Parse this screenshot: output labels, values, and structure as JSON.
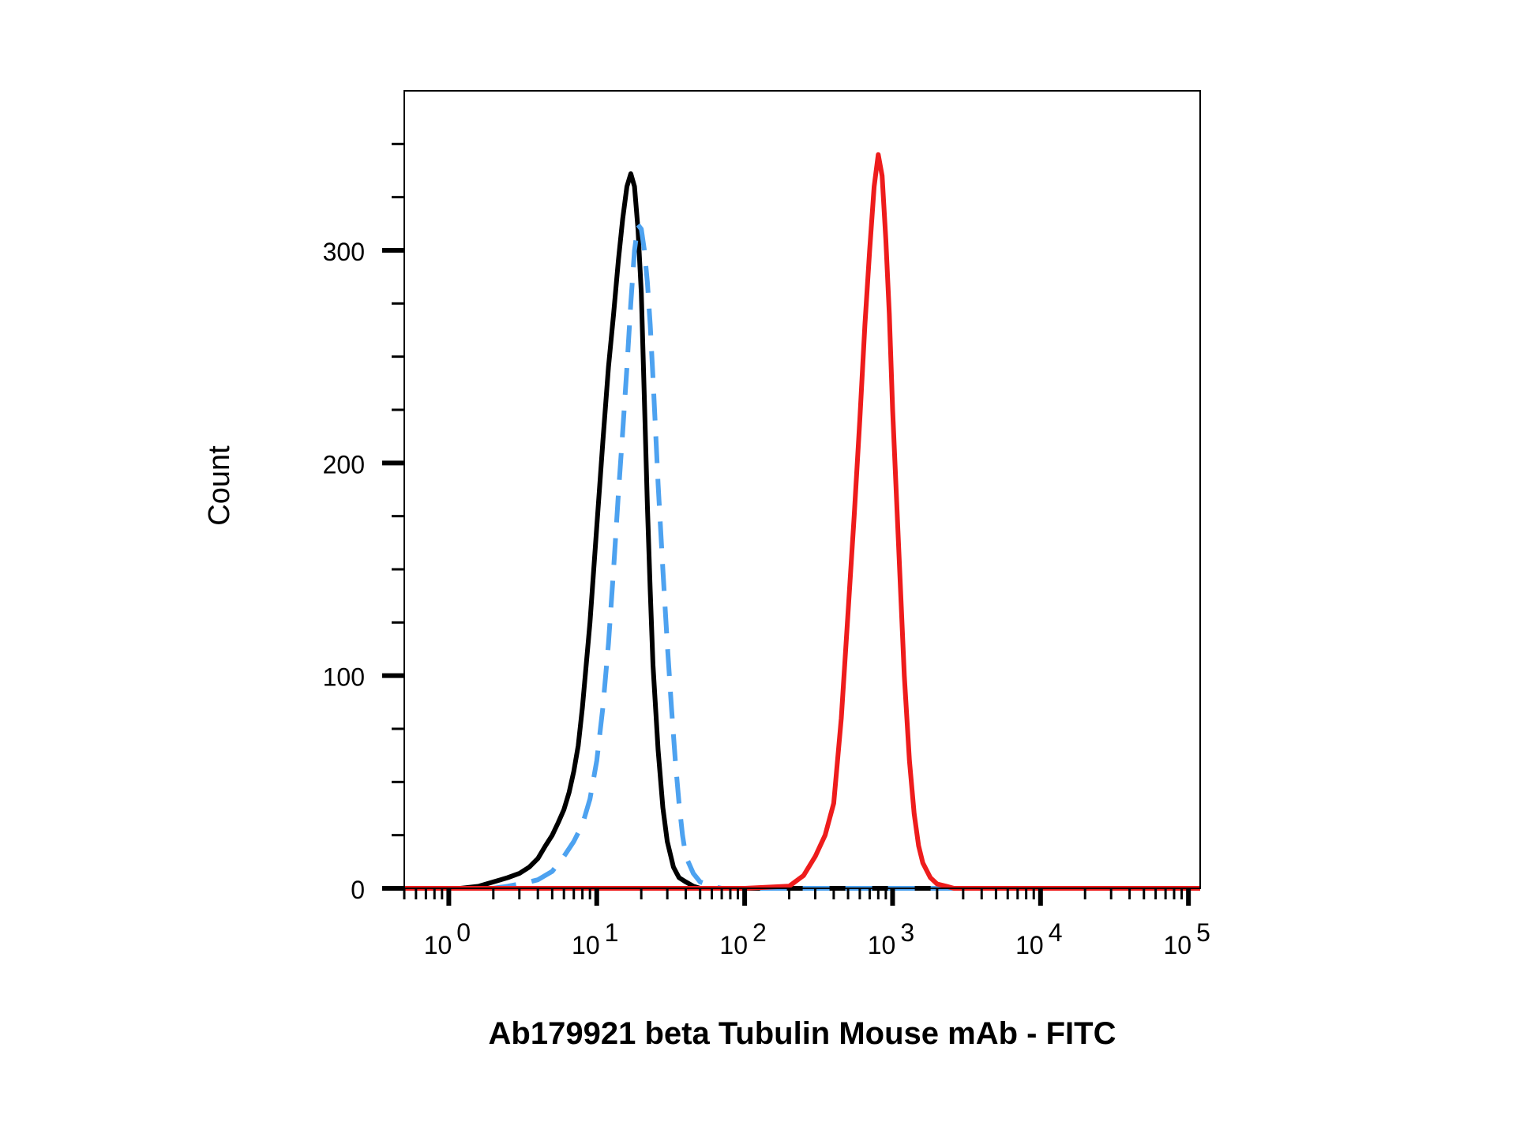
{
  "chart_data": {
    "type": "line",
    "title": "",
    "xlabel": "Ab179921 beta Tubulin Mouse mAb - FITC",
    "ylabel": "Count",
    "x_scale": "log10",
    "xlim": [
      0.5,
      120000
    ],
    "ylim": [
      0,
      375
    ],
    "grid": false,
    "legend": "none",
    "x_ticks": [
      {
        "base": "10",
        "exp": "0",
        "value": 1
      },
      {
        "base": "10",
        "exp": "1",
        "value": 10
      },
      {
        "base": "10",
        "exp": "2",
        "value": 100
      },
      {
        "base": "10",
        "exp": "3",
        "value": 1000
      },
      {
        "base": "10",
        "exp": "4",
        "value": 10000
      },
      {
        "base": "10",
        "exp": "5",
        "value": 100000
      }
    ],
    "y_ticks": [
      "0",
      "100",
      "200",
      "300"
    ],
    "y_tick_values": [
      0,
      100,
      200,
      300
    ],
    "series": [
      {
        "color": "#000000",
        "style": "solid",
        "x": [
          0.5,
          1.2,
          1.6,
          2.0,
          2.5,
          3.0,
          3.5,
          4.0,
          4.5,
          5.0,
          5.5,
          6.0,
          6.5,
          7.0,
          7.5,
          8.0,
          9.0,
          10.0,
          11.0,
          12.0,
          13.0,
          14.0,
          15.0,
          16.0,
          17.0,
          18.0,
          19.0,
          20.0,
          21.0,
          22.0,
          23.0,
          24.0,
          26.0,
          28.0,
          30.0,
          33.0,
          36.0,
          40.0,
          45.0,
          50.0,
          55.0,
          60.0,
          70.0,
          80.0,
          120000
        ],
        "y": [
          0,
          0,
          1,
          3,
          5,
          7,
          10,
          14,
          20,
          25,
          31,
          37,
          45,
          55,
          67,
          85,
          125,
          170,
          210,
          245,
          270,
          295,
          315,
          330,
          336,
          330,
          310,
          280,
          230,
          180,
          140,
          105,
          65,
          38,
          22,
          10,
          5,
          3,
          1,
          0,
          0,
          0,
          0,
          0,
          0
        ]
      },
      {
        "color": "#4DA2F0",
        "style": "dashed",
        "x": [
          0.5,
          2.0,
          2.5,
          3.0,
          3.5,
          4.0,
          5.0,
          6.0,
          7.0,
          8.0,
          9.0,
          10.0,
          11.0,
          12.0,
          13.0,
          14.0,
          15.0,
          16.0,
          17.0,
          18.0,
          19.0,
          20.0,
          21.0,
          22.0,
          23.0,
          24.0,
          25.0,
          26.0,
          28.0,
          30.0,
          32.0,
          34.0,
          36.0,
          38.0,
          40.0,
          45.0,
          50.0,
          60.0,
          70.0,
          80.0,
          120000
        ],
        "y": [
          0,
          0,
          1,
          2,
          3,
          4,
          8,
          15,
          22,
          30,
          42,
          60,
          85,
          115,
          150,
          185,
          215,
          245,
          275,
          300,
          312,
          310,
          300,
          285,
          265,
          240,
          215,
          190,
          150,
          115,
          85,
          60,
          40,
          25,
          15,
          7,
          3,
          1,
          0,
          0,
          0
        ]
      },
      {
        "color": "#EE1C1C",
        "style": "solid",
        "x": [
          0.5,
          100.0,
          200.0,
          250.0,
          300.0,
          350.0,
          400.0,
          450.0,
          500.0,
          550.0,
          600.0,
          650.0,
          700.0,
          750.0,
          800.0,
          850.0,
          900.0,
          950.0,
          1000.0,
          1100.0,
          1200.0,
          1300.0,
          1400.0,
          1500.0,
          1600.0,
          1800.0,
          2000.0,
          2300.0,
          2600.0,
          3000.0,
          120000
        ],
        "y": [
          0,
          0,
          1,
          6,
          15,
          25,
          40,
          80,
          130,
          175,
          220,
          265,
          300,
          330,
          345,
          335,
          305,
          270,
          225,
          160,
          100,
          60,
          35,
          20,
          12,
          5,
          2,
          1,
          0,
          0,
          0
        ]
      }
    ]
  }
}
